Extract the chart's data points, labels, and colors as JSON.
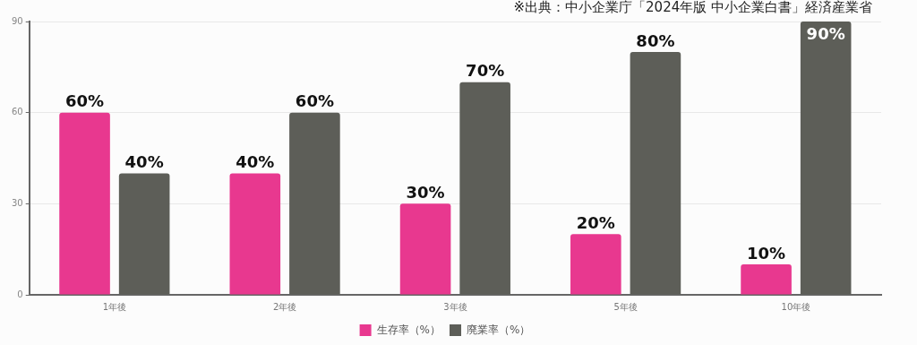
{
  "chart_data": {
    "type": "bar",
    "categories": [
      "1年後",
      "2年後",
      "3年後",
      "5年後",
      "10年後"
    ],
    "series": [
      {
        "name": "生存率（%）",
        "color": "#e8388f",
        "values": [
          60,
          40,
          30,
          20,
          10
        ],
        "value_labels": [
          "60%",
          "40%",
          "30%",
          "20%",
          "10%"
        ]
      },
      {
        "name": "廃業率（%）",
        "color": "#5d5e58",
        "values": [
          40,
          60,
          70,
          80,
          90
        ],
        "value_labels": [
          "40%",
          "60%",
          "70%",
          "80%",
          "90%"
        ]
      }
    ],
    "ylim": [
      0,
      90
    ],
    "yticks": [
      0,
      30,
      60,
      90
    ],
    "grid": "y",
    "legend": "bottom",
    "annotations": [
      "※出典：中小企業庁「2024年版 中小企業白書」経済産業省"
    ]
  }
}
